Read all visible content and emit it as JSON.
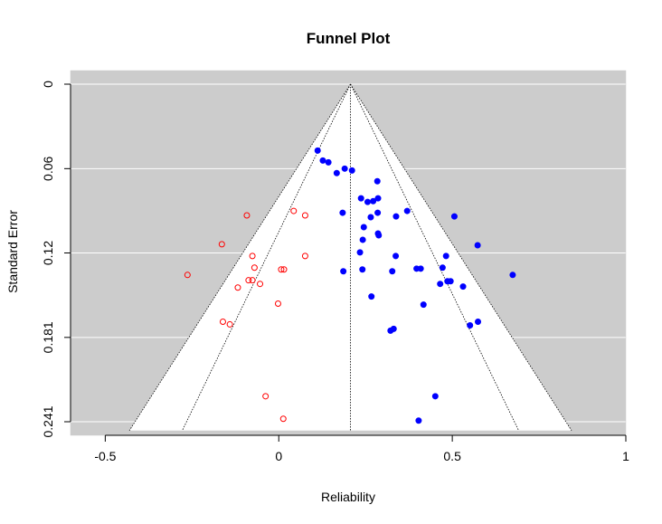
{
  "chart_data": {
    "type": "scatter",
    "title": "Funnel Plot",
    "xlabel": "Reliability",
    "ylabel": "Standard Error",
    "xlim": [
      -0.6,
      1.0
    ],
    "ylim": [
      0.2473,
      0
    ],
    "y_axis_reversed": true,
    "grid": "horizontal",
    "x_ticks": [
      {
        "value": -0.5,
        "label": "-0.5"
      },
      {
        "value": 0,
        "label": "0"
      },
      {
        "value": 0.5,
        "label": "0.5"
      },
      {
        "value": 1,
        "label": "1"
      }
    ],
    "y_ticks": [
      {
        "value": 0,
        "label": "0"
      },
      {
        "value": 0.0603,
        "label": "0.06"
      },
      {
        "value": 0.1205,
        "label": "0.12"
      },
      {
        "value": 0.1808,
        "label": "0.181"
      },
      {
        "value": 0.241,
        "label": "0.241"
      }
    ],
    "funnel": {
      "center": 0.2066,
      "outer_multiplier": 2.576,
      "inner_multiplier": 1.96,
      "ymax": 0.2473
    },
    "series": [
      {
        "marker": "filled-circle",
        "color": "#0000ff",
        "points": [
          {
            "x": 0.112,
            "y": 0.0474
          },
          {
            "x": 0.127,
            "y": 0.0545
          },
          {
            "x": 0.143,
            "y": 0.0558
          },
          {
            "x": 0.167,
            "y": 0.0635
          },
          {
            "x": 0.19,
            "y": 0.0603
          },
          {
            "x": 0.211,
            "y": 0.0616
          },
          {
            "x": 0.284,
            "y": 0.0693
          },
          {
            "x": 0.237,
            "y": 0.0815
          },
          {
            "x": 0.256,
            "y": 0.0841
          },
          {
            "x": 0.272,
            "y": 0.0835
          },
          {
            "x": 0.286,
            "y": 0.0815
          },
          {
            "x": 0.184,
            "y": 0.0918
          },
          {
            "x": 0.285,
            "y": 0.0918
          },
          {
            "x": 0.37,
            "y": 0.0905
          },
          {
            "x": 0.265,
            "y": 0.095
          },
          {
            "x": 0.338,
            "y": 0.0944
          },
          {
            "x": 0.506,
            "y": 0.0944
          },
          {
            "x": 0.245,
            "y": 0.1021
          },
          {
            "x": 0.286,
            "y": 0.1066
          },
          {
            "x": 0.288,
            "y": 0.1079
          },
          {
            "x": 0.242,
            "y": 0.1111
          },
          {
            "x": 0.573,
            "y": 0.115
          },
          {
            "x": 0.234,
            "y": 0.1201
          },
          {
            "x": 0.337,
            "y": 0.1227
          },
          {
            "x": 0.482,
            "y": 0.1227
          },
          {
            "x": 0.472,
            "y": 0.131
          },
          {
            "x": 0.186,
            "y": 0.1336
          },
          {
            "x": 0.241,
            "y": 0.1323
          },
          {
            "x": 0.327,
            "y": 0.1336
          },
          {
            "x": 0.397,
            "y": 0.1317
          },
          {
            "x": 0.409,
            "y": 0.1317
          },
          {
            "x": 0.674,
            "y": 0.1362
          },
          {
            "x": 0.465,
            "y": 0.1426
          },
          {
            "x": 0.486,
            "y": 0.1407
          },
          {
            "x": 0.495,
            "y": 0.1407
          },
          {
            "x": 0.531,
            "y": 0.1445
          },
          {
            "x": 0.267,
            "y": 0.1516
          },
          {
            "x": 0.417,
            "y": 0.1574
          },
          {
            "x": 0.574,
            "y": 0.1696
          },
          {
            "x": 0.551,
            "y": 0.1722
          },
          {
            "x": 0.331,
            "y": 0.1747
          },
          {
            "x": 0.322,
            "y": 0.176
          },
          {
            "x": 0.451,
            "y": 0.2228
          },
          {
            "x": 0.403,
            "y": 0.2402
          }
        ]
      },
      {
        "marker": "open-circle",
        "color": "#ff0000",
        "points": [
          {
            "x": 0.043,
            "y": 0.0905
          },
          {
            "x": 0.076,
            "y": 0.0937
          },
          {
            "x": -0.092,
            "y": 0.0937
          },
          {
            "x": -0.164,
            "y": 0.1143
          },
          {
            "x": -0.076,
            "y": 0.1227
          },
          {
            "x": 0.076,
            "y": 0.1227
          },
          {
            "x": -0.07,
            "y": 0.131
          },
          {
            "x": 0.007,
            "y": 0.1323
          },
          {
            "x": 0.015,
            "y": 0.1323
          },
          {
            "x": -0.263,
            "y": 0.1362
          },
          {
            "x": -0.087,
            "y": 0.14
          },
          {
            "x": -0.076,
            "y": 0.14
          },
          {
            "x": -0.054,
            "y": 0.1426
          },
          {
            "x": -0.118,
            "y": 0.1452
          },
          {
            "x": -0.002,
            "y": 0.1567
          },
          {
            "x": -0.161,
            "y": 0.1696
          },
          {
            "x": -0.141,
            "y": 0.1715
          },
          {
            "x": -0.038,
            "y": 0.2228
          },
          {
            "x": 0.013,
            "y": 0.2389
          }
        ]
      }
    ]
  }
}
